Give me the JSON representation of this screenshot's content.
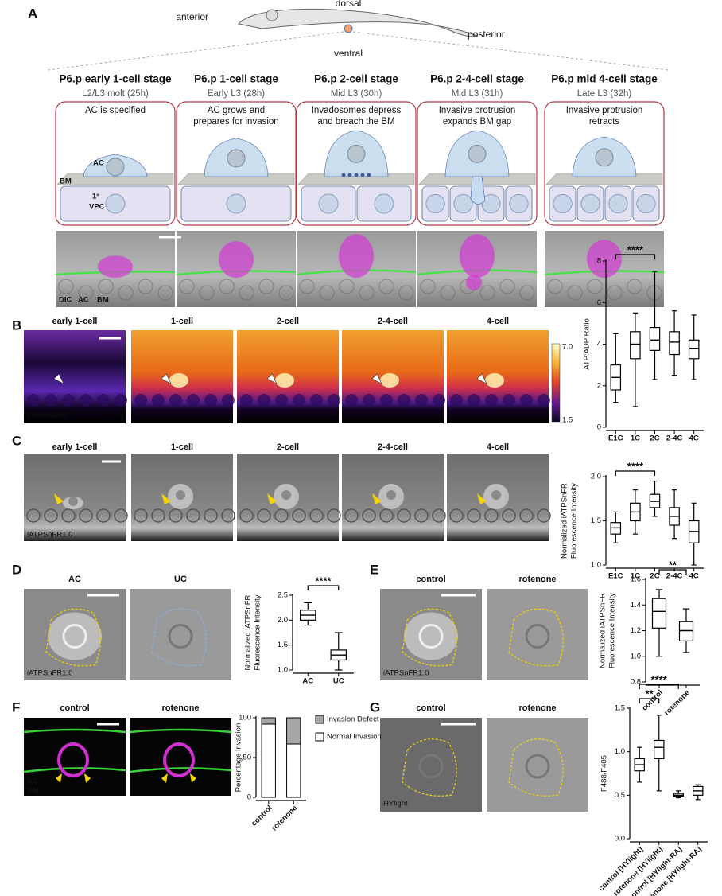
{
  "panel_labels": [
    "A",
    "B",
    "C",
    "D",
    "E",
    "F",
    "G"
  ],
  "panel_a": {
    "orientation": {
      "dorsal": "dorsal",
      "anterior": "anterior",
      "posterior": "posterior",
      "ventral": "ventral"
    },
    "stages": [
      {
        "title": "P6.p early 1-cell stage",
        "subtitle": "L2/L3 molt (25h)",
        "description": [
          "AC is specified"
        ]
      },
      {
        "title": "P6.p 1-cell stage",
        "subtitle": "Early L3 (28h)",
        "description": [
          "AC grows and",
          "prepares for invasion"
        ]
      },
      {
        "title": "P6.p 2-cell stage",
        "subtitle": "Mid L3 (30h)",
        "description": [
          "Invadosomes depress",
          "and breach the BM"
        ]
      },
      {
        "title": "P6.p 2-4-cell stage",
        "subtitle": "Mid L3 (31h)",
        "description": [
          "Invasive protrusion",
          "expands BM gap"
        ]
      },
      {
        "title": "P6.p mid 4-cell stage",
        "subtitle": "Late L3 (32h)",
        "description": [
          "Invasive protrusion",
          "retracts"
        ]
      }
    ],
    "diagram_labels": {
      "ac": "AC",
      "bm": "BM",
      "vpc": [
        "1°",
        "VPC"
      ]
    },
    "channels": [
      "DIC",
      "AC",
      "BM"
    ]
  },
  "panel_b": {
    "image_labels": [
      "early 1-cell",
      "1-cell",
      "2-cell",
      "2-4-cell",
      "4-cell"
    ],
    "reporter": "PercevalHR",
    "colorbar": [
      "7.0",
      "1.5"
    ]
  },
  "panel_c": {
    "image_labels": [
      "early 1-cell",
      "1-cell",
      "2-cell",
      "2-4-cell",
      "4-cell"
    ],
    "reporter": "iATPSnFR1.0"
  },
  "panel_d": {
    "image_labels": [
      "AC",
      "UC"
    ],
    "reporter": "iATPSnFR1.0"
  },
  "panel_e": {
    "image_labels": [
      "control",
      "rotenone"
    ],
    "reporter": "iATPSnFR1.0"
  },
  "panel_f": {
    "image_labels": [
      "control",
      "rotenone"
    ],
    "channels": [
      "AC",
      "BM"
    ]
  },
  "panel_g": {
    "image_labels": [
      "control",
      "rotenone"
    ],
    "reporter": "HYlight"
  },
  "chart_data": [
    {
      "type": "box",
      "ylabel": [
        "ATP:ADP Ratio"
      ],
      "categories": [
        "E1C",
        "1C",
        "2C",
        "2-4C",
        "4C"
      ],
      "boxes": [
        {
          "min": 1.2,
          "q1": 1.8,
          "median": 2.4,
          "q3": 3.0,
          "max": 4.5
        },
        {
          "min": 1.0,
          "q1": 3.3,
          "median": 4.0,
          "q3": 4.6,
          "max": 5.5
        },
        {
          "min": 2.3,
          "q1": 3.7,
          "median": 4.2,
          "q3": 4.8,
          "max": 7.5
        },
        {
          "min": 2.5,
          "q1": 3.5,
          "median": 4.1,
          "q3": 4.6,
          "max": 5.6
        },
        {
          "min": 2.3,
          "q1": 3.3,
          "median": 3.8,
          "q3": 4.2,
          "max": 5.4
        }
      ],
      "ylim": [
        0,
        8
      ],
      "yticks": [
        0,
        2,
        4,
        6,
        8
      ],
      "annotations": [
        "****"
      ]
    },
    {
      "type": "box",
      "ylabel": [
        "Normalized iATPSnFR",
        "Fluorescence Intensity"
      ],
      "categories": [
        "E1C",
        "1C",
        "2C",
        "2-4C",
        "4C"
      ],
      "boxes": [
        {
          "min": 1.25,
          "q1": 1.35,
          "median": 1.42,
          "q3": 1.48,
          "max": 1.6
        },
        {
          "min": 1.35,
          "q1": 1.5,
          "median": 1.6,
          "q3": 1.7,
          "max": 1.85
        },
        {
          "min": 1.55,
          "q1": 1.65,
          "median": 1.72,
          "q3": 1.8,
          "max": 1.95
        },
        {
          "min": 1.3,
          "q1": 1.45,
          "median": 1.55,
          "q3": 1.65,
          "max": 1.85
        },
        {
          "min": 1.0,
          "q1": 1.25,
          "median": 1.38,
          "q3": 1.5,
          "max": 1.7
        }
      ],
      "ylim": [
        1.0,
        2.0
      ],
      "yticks": [
        {
          "value": 1,
          "label": "1.0"
        },
        1.5,
        {
          "value": 2,
          "label": "2.0"
        }
      ],
      "annotations": [
        "****"
      ]
    },
    {
      "type": "box",
      "ylabel": [
        "Normalized iATPSnFR",
        "Fluorescence Intensity"
      ],
      "categories": [
        "AC",
        "UC"
      ],
      "boxes": [
        {
          "min": 1.9,
          "q1": 2.0,
          "median": 2.1,
          "q3": 2.2,
          "max": 2.35
        },
        {
          "min": 1.0,
          "q1": 1.2,
          "median": 1.3,
          "q3": 1.4,
          "max": 1.75
        }
      ],
      "ylim": [
        1.0,
        2.5
      ],
      "yticks": [
        {
          "value": 1,
          "label": "1.0"
        },
        1.5,
        {
          "value": 2,
          "label": "2.0"
        },
        2.5
      ],
      "annotations": [
        "****"
      ]
    },
    {
      "type": "box",
      "ylabel": [
        "Normalized iATPSnFR",
        "Fluorescence Intensity"
      ],
      "categories": [
        "control",
        "rotenone"
      ],
      "boxes": [
        {
          "min": 1.0,
          "q1": 1.22,
          "median": 1.35,
          "q3": 1.45,
          "max": 1.52
        },
        {
          "min": 1.03,
          "q1": 1.12,
          "median": 1.2,
          "q3": 1.27,
          "max": 1.37
        }
      ],
      "ylim": [
        0.8,
        1.6
      ],
      "yticks": [
        0.8,
        {
          "value": 1,
          "label": "1.0"
        },
        1.2,
        1.4,
        1.6
      ],
      "annotations": [
        "**"
      ]
    },
    {
      "type": "stacked_bar",
      "ylabel": [
        "Percentage Invasion"
      ],
      "categories": [
        "control",
        "rotenone"
      ],
      "series": [
        {
          "name": "Normal Invasion",
          "color": "#ffffff",
          "values": [
            92,
            67
          ]
        },
        {
          "name": "Invasion Defect",
          "color": "#a6a6a6",
          "values": [
            8,
            33
          ]
        }
      ],
      "ylim": [
        0,
        100
      ],
      "yticks": [
        0,
        50,
        100
      ]
    },
    {
      "type": "box",
      "ylabel": [
        "F488/F405"
      ],
      "categories": [
        "control [HYlight]",
        "rotenone [HYlight]",
        "control [HYlight-RA]",
        "rotenone [HYlight-RA]"
      ],
      "boxes": [
        {
          "min": 0.65,
          "q1": 0.78,
          "median": 0.85,
          "q3": 0.92,
          "max": 1.05
        },
        {
          "min": 0.55,
          "q1": 0.92,
          "median": 1.05,
          "q3": 1.13,
          "max": 1.42
        },
        {
          "min": 0.47,
          "q1": 0.49,
          "median": 0.5,
          "q3": 0.52,
          "max": 0.55
        },
        {
          "min": 0.45,
          "q1": 0.5,
          "median": 0.55,
          "q3": 0.6,
          "max": 0.62
        }
      ],
      "ylim": [
        0,
        1.5
      ],
      "yticks": [
        {
          "value": 0,
          "label": "0.0"
        },
        0.5,
        {
          "value": 1,
          "label": "1.0"
        },
        1.5
      ],
      "annotations": [
        "**",
        "****"
      ]
    }
  ]
}
